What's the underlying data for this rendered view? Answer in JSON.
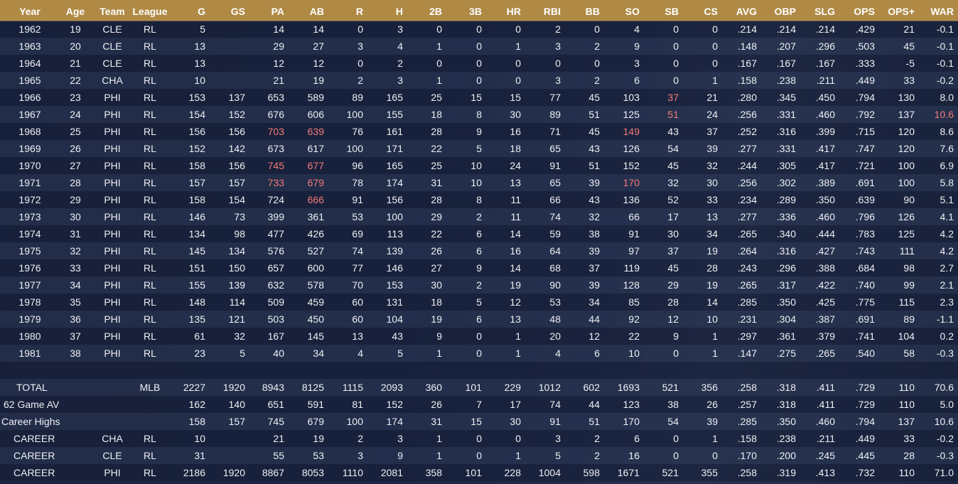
{
  "table": {
    "header": [
      "Year",
      "Age",
      "Team",
      "League",
      "G",
      "GS",
      "PA",
      "AB",
      "R",
      "H",
      "2B",
      "3B",
      "HR",
      "RBI",
      "BB",
      "SO",
      "SB",
      "CS",
      "AVG",
      "OBP",
      "SLG",
      "OPS",
      "OPS+",
      "WAR"
    ],
    "highlight_color": "#f27a7a",
    "rows": [
      {
        "cells": [
          "1962",
          "19",
          "CLE",
          "RL",
          "5",
          null,
          "14",
          "14",
          "0",
          "3",
          "0",
          "0",
          "0",
          "2",
          "0",
          "4",
          "0",
          "0",
          ".214",
          ".214",
          ".214",
          ".429",
          "21",
          "-0.1"
        ],
        "lead": []
      },
      {
        "cells": [
          "1963",
          "20",
          "CLE",
          "RL",
          "13",
          null,
          "29",
          "27",
          "3",
          "4",
          "1",
          "0",
          "1",
          "3",
          "2",
          "9",
          "0",
          "0",
          ".148",
          ".207",
          ".296",
          ".503",
          "45",
          "-0.1"
        ],
        "lead": []
      },
      {
        "cells": [
          "1964",
          "21",
          "CLE",
          "RL",
          "13",
          null,
          "12",
          "12",
          "0",
          "2",
          "0",
          "0",
          "0",
          "0",
          "0",
          "3",
          "0",
          "0",
          ".167",
          ".167",
          ".167",
          ".333",
          "-5",
          "-0.1"
        ],
        "lead": []
      },
      {
        "cells": [
          "1965",
          "22",
          "CHA",
          "RL",
          "10",
          null,
          "21",
          "19",
          "2",
          "3",
          "1",
          "0",
          "0",
          "3",
          "2",
          "6",
          "0",
          "1",
          ".158",
          ".238",
          ".211",
          ".449",
          "33",
          "-0.2"
        ],
        "lead": []
      },
      {
        "cells": [
          "1966",
          "23",
          "PHI",
          "RL",
          "153",
          "137",
          "653",
          "589",
          "89",
          "165",
          "25",
          "15",
          "15",
          "77",
          "45",
          "103",
          "37",
          "21",
          ".280",
          ".345",
          ".450",
          ".794",
          "130",
          "8.0"
        ],
        "lead": [
          16
        ]
      },
      {
        "cells": [
          "1967",
          "24",
          "PHI",
          "RL",
          "154",
          "152",
          "676",
          "606",
          "100",
          "155",
          "18",
          "8",
          "30",
          "89",
          "51",
          "125",
          "51",
          "24",
          ".256",
          ".331",
          ".460",
          ".792",
          "137",
          "10.6"
        ],
        "lead": [
          16,
          23
        ]
      },
      {
        "cells": [
          "1968",
          "25",
          "PHI",
          "RL",
          "156",
          "156",
          "703",
          "639",
          "76",
          "161",
          "28",
          "9",
          "16",
          "71",
          "45",
          "149",
          "43",
          "37",
          ".252",
          ".316",
          ".399",
          ".715",
          "120",
          "8.6"
        ],
        "lead": [
          6,
          7,
          15
        ]
      },
      {
        "cells": [
          "1969",
          "26",
          "PHI",
          "RL",
          "152",
          "142",
          "673",
          "617",
          "100",
          "171",
          "22",
          "5",
          "18",
          "65",
          "43",
          "126",
          "54",
          "39",
          ".277",
          ".331",
          ".417",
          ".747",
          "120",
          "7.6"
        ],
        "lead": []
      },
      {
        "cells": [
          "1970",
          "27",
          "PHI",
          "RL",
          "158",
          "156",
          "745",
          "677",
          "96",
          "165",
          "25",
          "10",
          "24",
          "91",
          "51",
          "152",
          "45",
          "32",
          ".244",
          ".305",
          ".417",
          ".721",
          "100",
          "6.9"
        ],
        "lead": [
          6,
          7
        ]
      },
      {
        "cells": [
          "1971",
          "28",
          "PHI",
          "RL",
          "157",
          "157",
          "733",
          "679",
          "78",
          "174",
          "31",
          "10",
          "13",
          "65",
          "39",
          "170",
          "32",
          "30",
          ".256",
          ".302",
          ".389",
          ".691",
          "100",
          "5.8"
        ],
        "lead": [
          6,
          7,
          15
        ]
      },
      {
        "cells": [
          "1972",
          "29",
          "PHI",
          "RL",
          "158",
          "154",
          "724",
          "666",
          "91",
          "156",
          "28",
          "8",
          "11",
          "66",
          "43",
          "136",
          "52",
          "33",
          ".234",
          ".289",
          ".350",
          ".639",
          "90",
          "5.1"
        ],
        "lead": [
          7
        ]
      },
      {
        "cells": [
          "1973",
          "30",
          "PHI",
          "RL",
          "146",
          "73",
          "399",
          "361",
          "53",
          "100",
          "29",
          "2",
          "11",
          "74",
          "32",
          "66",
          "17",
          "13",
          ".277",
          ".336",
          ".460",
          ".796",
          "126",
          "4.1"
        ],
        "lead": []
      },
      {
        "cells": [
          "1974",
          "31",
          "PHI",
          "RL",
          "134",
          "98",
          "477",
          "426",
          "69",
          "113",
          "22",
          "6",
          "14",
          "59",
          "38",
          "91",
          "30",
          "34",
          ".265",
          ".340",
          ".444",
          ".783",
          "125",
          "4.2"
        ],
        "lead": []
      },
      {
        "cells": [
          "1975",
          "32",
          "PHI",
          "RL",
          "145",
          "134",
          "576",
          "527",
          "74",
          "139",
          "26",
          "6",
          "16",
          "64",
          "39",
          "97",
          "37",
          "19",
          ".264",
          ".316",
          ".427",
          ".743",
          "111",
          "4.2"
        ],
        "lead": []
      },
      {
        "cells": [
          "1976",
          "33",
          "PHI",
          "RL",
          "151",
          "150",
          "657",
          "600",
          "77",
          "146",
          "27",
          "9",
          "14",
          "68",
          "37",
          "119",
          "45",
          "28",
          ".243",
          ".296",
          ".388",
          ".684",
          "98",
          "2.7"
        ],
        "lead": []
      },
      {
        "cells": [
          "1977",
          "34",
          "PHI",
          "RL",
          "155",
          "139",
          "632",
          "578",
          "70",
          "153",
          "30",
          "2",
          "19",
          "90",
          "39",
          "128",
          "29",
          "19",
          ".265",
          ".317",
          ".422",
          ".740",
          "99",
          "2.1"
        ],
        "lead": []
      },
      {
        "cells": [
          "1978",
          "35",
          "PHI",
          "RL",
          "148",
          "114",
          "509",
          "459",
          "60",
          "131",
          "18",
          "5",
          "12",
          "53",
          "34",
          "85",
          "28",
          "14",
          ".285",
          ".350",
          ".425",
          ".775",
          "115",
          "2.3"
        ],
        "lead": []
      },
      {
        "cells": [
          "1979",
          "36",
          "PHI",
          "RL",
          "135",
          "121",
          "503",
          "450",
          "60",
          "104",
          "19",
          "6",
          "13",
          "48",
          "44",
          "92",
          "12",
          "10",
          ".231",
          ".304",
          ".387",
          ".691",
          "89",
          "-1.1"
        ],
        "lead": []
      },
      {
        "cells": [
          "1980",
          "37",
          "PHI",
          "RL",
          "61",
          "32",
          "167",
          "145",
          "13",
          "43",
          "9",
          "0",
          "1",
          "20",
          "12",
          "22",
          "9",
          "1",
          ".297",
          ".361",
          ".379",
          ".741",
          "104",
          "0.2"
        ],
        "lead": []
      },
      {
        "cells": [
          "1981",
          "38",
          "PHI",
          "RL",
          "23",
          "5",
          "40",
          "34",
          "4",
          "5",
          "1",
          "0",
          "1",
          "4",
          "6",
          "10",
          "0",
          "1",
          ".147",
          ".275",
          ".265",
          ".540",
          "58",
          "-0.3"
        ],
        "lead": []
      }
    ],
    "summary": [
      [
        "TOTAL",
        null,
        null,
        "MLB",
        "2227",
        "1920",
        "8943",
        "8125",
        "1115",
        "2093",
        "360",
        "101",
        "229",
        "1012",
        "602",
        "1693",
        "521",
        "356",
        ".258",
        ".318",
        ".411",
        ".729",
        "110",
        "70.6"
      ],
      [
        "62 Game AVG",
        null,
        null,
        null,
        "162",
        "140",
        "651",
        "591",
        "81",
        "152",
        "26",
        "7",
        "17",
        "74",
        "44",
        "123",
        "38",
        "26",
        ".257",
        ".318",
        ".411",
        ".729",
        "110",
        "5.0"
      ],
      [
        "Career Highs",
        null,
        null,
        null,
        "158",
        "157",
        "745",
        "679",
        "100",
        "174",
        "31",
        "15",
        "30",
        "91",
        "51",
        "170",
        "54",
        "39",
        ".285",
        ".350",
        ".460",
        ".794",
        "137",
        "10.6"
      ],
      [
        "CAREER",
        null,
        "CHA",
        "RL",
        "10",
        null,
        "21",
        "19",
        "2",
        "3",
        "1",
        "0",
        "0",
        "3",
        "2",
        "6",
        "0",
        "1",
        ".158",
        ".238",
        ".211",
        ".449",
        "33",
        "-0.2"
      ],
      [
        "CAREER",
        null,
        "CLE",
        "RL",
        "31",
        null,
        "55",
        "53",
        "3",
        "9",
        "1",
        "0",
        "1",
        "5",
        "2",
        "16",
        "0",
        "0",
        ".170",
        ".200",
        ".245",
        ".445",
        "28",
        "-0.3"
      ],
      [
        "CAREER",
        null,
        "PHI",
        "RL",
        "2186",
        "1920",
        "8867",
        "8053",
        "1110",
        "2081",
        "358",
        "101",
        "228",
        "1004",
        "598",
        "1671",
        "521",
        "355",
        ".258",
        ".319",
        ".413",
        ".732",
        "110",
        "71.0"
      ]
    ]
  }
}
